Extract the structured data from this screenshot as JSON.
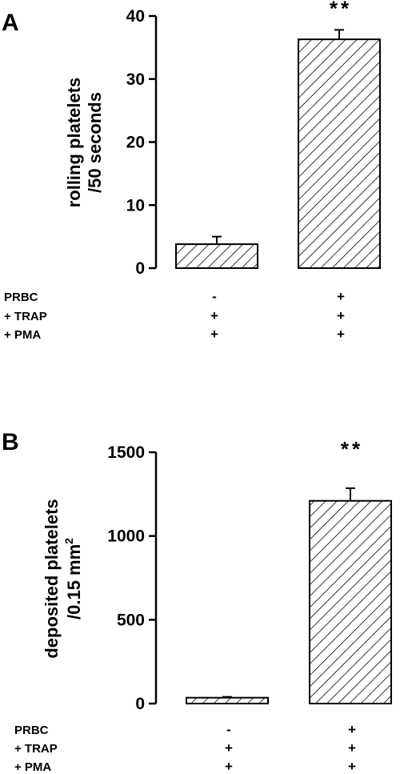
{
  "chart_data": [
    {
      "type": "bar",
      "panel": "A",
      "categories": [
        "1",
        "2"
      ],
      "values": [
        3.8,
        36.3
      ],
      "errors": [
        1.2,
        1.5
      ],
      "ylabel_line1": "rolling platelets",
      "ylabel_line2": "/50 seconds",
      "ylim": [
        0,
        40
      ],
      "yticks": [
        "0",
        "10",
        "20",
        "30",
        "40"
      ],
      "significance": [
        "",
        "**"
      ],
      "conditions": [
        {
          "label": "PRBC",
          "signs": [
            "-",
            "+"
          ]
        },
        {
          "label": "+ TRAP",
          "signs": [
            "+",
            "+"
          ]
        },
        {
          "label": "+ PMA",
          "signs": [
            "+",
            "+"
          ]
        }
      ]
    },
    {
      "type": "bar",
      "panel": "B",
      "categories": [
        "1",
        "2"
      ],
      "values": [
        35,
        1210
      ],
      "errors": [
        5,
        75
      ],
      "ylabel_line1": "deposited platelets",
      "ylabel_line2": "/0.15 mm",
      "ylabel_sup": "2",
      "ylim": [
        0,
        1500
      ],
      "yticks": [
        "0",
        "500",
        "1000",
        "1500"
      ],
      "significance": [
        "",
        "**"
      ],
      "conditions": [
        {
          "label": "PRBC",
          "signs": [
            "-",
            "+"
          ]
        },
        {
          "label": "+ TRAP",
          "signs": [
            "+",
            "+"
          ]
        },
        {
          "label": "+ PMA",
          "signs": [
            "+",
            "+"
          ]
        }
      ]
    }
  ]
}
